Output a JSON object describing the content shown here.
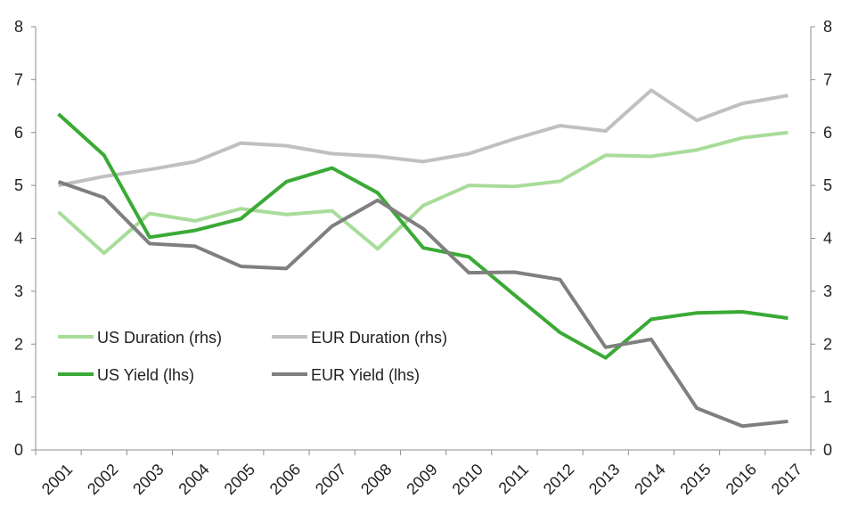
{
  "chart_data": {
    "type": "line",
    "title": "",
    "xlabel": "",
    "ylabel_left": "",
    "ylabel_right": "",
    "categories": [
      "2001",
      "2002",
      "2003",
      "2004",
      "2005",
      "2006",
      "2007",
      "2008",
      "2009",
      "2010",
      "2011",
      "2012",
      "2013",
      "2014",
      "2015",
      "2016",
      "2017"
    ],
    "ylim_left": [
      0,
      8
    ],
    "ylim_right": [
      0,
      8
    ],
    "yticks": [
      "0",
      "1",
      "2",
      "3",
      "4",
      "5",
      "6",
      "7",
      "8"
    ],
    "grid": false,
    "legend_placement": "center-left",
    "series": [
      {
        "name": "US Duration (rhs)",
        "axis": "right",
        "color": "#a8dc9a",
        "width": 4,
        "values": [
          4.5,
          3.72,
          4.47,
          4.33,
          4.56,
          4.45,
          4.52,
          3.8,
          4.62,
          5.0,
          4.98,
          5.08,
          5.57,
          5.55,
          5.67,
          5.9,
          6.0
        ]
      },
      {
        "name": "EUR Duration (rhs)",
        "axis": "right",
        "color": "#c0c0c0",
        "width": 4,
        "values": [
          5.0,
          5.17,
          5.3,
          5.45,
          5.8,
          5.75,
          5.6,
          5.55,
          5.45,
          5.6,
          5.88,
          6.13,
          6.03,
          6.8,
          6.23,
          6.55,
          6.7
        ]
      },
      {
        "name": "US Yield (lhs)",
        "axis": "left",
        "color": "#3aaa35",
        "width": 4,
        "values": [
          6.35,
          5.57,
          4.02,
          4.15,
          4.37,
          5.07,
          5.33,
          4.86,
          3.82,
          3.65,
          2.93,
          2.22,
          1.74,
          2.47,
          2.59,
          2.61,
          2.49
        ]
      },
      {
        "name": "EUR Yield (lhs)",
        "axis": "left",
        "color": "#7f7f7f",
        "width": 4,
        "values": [
          5.07,
          4.77,
          3.9,
          3.85,
          3.47,
          3.43,
          4.23,
          4.72,
          4.18,
          3.35,
          3.36,
          3.22,
          1.94,
          2.09,
          0.79,
          0.45,
          0.54
        ]
      }
    ]
  }
}
